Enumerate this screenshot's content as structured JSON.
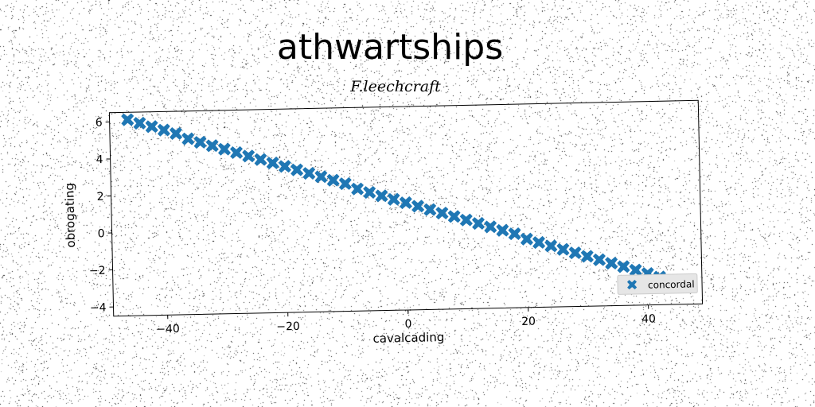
{
  "chart_data": {
    "type": "scatter",
    "title": "athwartships",
    "subtitle": "F.leechcraft",
    "xlabel": "cavalcading",
    "ylabel": "obrogating",
    "xlim": [
      -49,
      49
    ],
    "ylim": [
      -4.5,
      6.5
    ],
    "xticks": [
      -40,
      -20,
      0,
      20,
      40
    ],
    "xtick_labels": [
      "−40",
      "−20",
      "0",
      "20",
      "40"
    ],
    "yticks": [
      -4,
      -2,
      0,
      2,
      4,
      6
    ],
    "ytick_labels": [
      "−4",
      "−2",
      "0",
      "2",
      "4",
      "6"
    ],
    "grid": false,
    "legend_position": "lower-right",
    "series": [
      {
        "name": "concordal",
        "marker": "X",
        "color": "#1f77b4",
        "x_range": [
          -46,
          42
        ],
        "x_step": 2,
        "x": [
          -46,
          -44,
          -42,
          -40,
          -38,
          -36,
          -34,
          -32,
          -30,
          -28,
          -26,
          -24,
          -22,
          -20,
          -18,
          -16,
          -14,
          -12,
          -10,
          -8,
          -6,
          -4,
          -2,
          0,
          2,
          4,
          6,
          8,
          10,
          12,
          14,
          16,
          18,
          20,
          22,
          24,
          26,
          28,
          30,
          32,
          34,
          36,
          38,
          40,
          42
        ],
        "y": [
          6.1,
          5.9,
          5.7,
          5.5,
          5.3,
          5.0,
          4.8,
          4.6,
          4.4,
          4.2,
          4.0,
          3.8,
          3.6,
          3.4,
          3.2,
          3.0,
          2.8,
          2.6,
          2.4,
          2.1,
          1.9,
          1.7,
          1.5,
          1.3,
          1.1,
          0.9,
          0.7,
          0.5,
          0.3,
          0.1,
          -0.1,
          -0.3,
          -0.5,
          -0.8,
          -1.0,
          -1.2,
          -1.4,
          -1.6,
          -1.8,
          -2.0,
          -2.2,
          -2.4,
          -2.6,
          -2.8,
          -3.0
        ]
      }
    ]
  }
}
